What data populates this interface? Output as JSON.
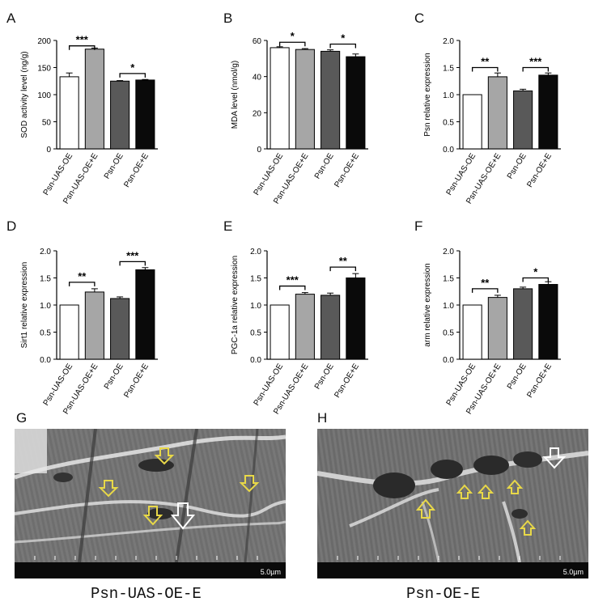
{
  "colors": {
    "open_bar": "#ffffff",
    "light_bar": "#a6a6a6",
    "dark_bar": "#595959",
    "black_bar": "#0a0a0a",
    "arrow_yellow": "#e8d848",
    "arrow_white": "#ffffff"
  },
  "chart_data": [
    {
      "panel": "A",
      "type": "bar",
      "ylabel": "SOD activity level (ng/g)",
      "categories": [
        "Psn-UAS-OE",
        "Psn-UAS-OE+E",
        "Psn-OE",
        "Psn-OE+E"
      ],
      "values": [
        133,
        184,
        125,
        127
      ],
      "errors": [
        7,
        2,
        1,
        1
      ],
      "ylim": [
        0,
        200
      ],
      "yticks": [
        "0",
        "50",
        "100",
        "150",
        "200"
      ],
      "tick_values": [
        0,
        50,
        100,
        150,
        200
      ],
      "significance": [
        {
          "from": 0,
          "to": 1,
          "label": "***",
          "level": 190
        },
        {
          "from": 2,
          "to": 3,
          "label": "*",
          "level": 139
        }
      ]
    },
    {
      "panel": "B",
      "type": "bar",
      "ylabel": "MDA  level (nmol/g)",
      "categories": [
        "Psn-UAS-OE",
        "Psn-UAS-OE+E",
        "Psn-OE",
        "Psn-OE+E"
      ],
      "values": [
        56,
        55,
        54,
        51
      ],
      "errors": [
        0.5,
        0.5,
        0.8,
        1.5
      ],
      "ylim": [
        0,
        60
      ],
      "yticks": [
        "0",
        "20",
        "40",
        "60"
      ],
      "tick_values": [
        0,
        20,
        40,
        60
      ],
      "significance": [
        {
          "from": 0,
          "to": 1,
          "label": "*",
          "level": 59
        },
        {
          "from": 2,
          "to": 3,
          "label": "*",
          "level": 58
        }
      ]
    },
    {
      "panel": "C",
      "type": "bar",
      "ylabel": "Psn relative expression",
      "categories": [
        "Psn-UAS-OE",
        "Psn-UAS-OE+E",
        "Psn-OE",
        "Psn-OE+E"
      ],
      "values": [
        1.0,
        1.33,
        1.07,
        1.36
      ],
      "errors": [
        0.0,
        0.07,
        0.03,
        0.04
      ],
      "ylim": [
        0,
        2.0
      ],
      "yticks": [
        "0.0",
        "0.5",
        "1.0",
        "1.5",
        "2.0"
      ],
      "tick_values": [
        0,
        0.5,
        1.0,
        1.5,
        2.0
      ],
      "significance": [
        {
          "from": 0,
          "to": 1,
          "label": "**",
          "level": 1.5
        },
        {
          "from": 2,
          "to": 3,
          "label": "***",
          "level": 1.5
        }
      ]
    },
    {
      "panel": "D",
      "type": "bar",
      "ylabel": "Sirt1  relative expression",
      "categories": [
        "Psn-UAS-OE",
        "Psn-UAS-OE+E",
        "Psn-OE",
        "Psn-OE+E"
      ],
      "values": [
        1.0,
        1.24,
        1.12,
        1.65
      ],
      "errors": [
        0.0,
        0.06,
        0.03,
        0.04
      ],
      "ylim": [
        0,
        2.0
      ],
      "yticks": [
        "0.0",
        "0.5",
        "1.0",
        "1.5",
        "2.0"
      ],
      "tick_values": [
        0,
        0.5,
        1.0,
        1.5,
        2.0
      ],
      "significance": [
        {
          "from": 0,
          "to": 1,
          "label": "**",
          "level": 1.42
        },
        {
          "from": 2,
          "to": 3,
          "label": "***",
          "level": 1.8
        }
      ]
    },
    {
      "panel": "E",
      "type": "bar",
      "ylabel": "PGC-1a relative expression",
      "categories": [
        "Psn-UAS-OE",
        "Psn-UAS-OE+E",
        "Psn-OE",
        "Psn-OE+E"
      ],
      "values": [
        1.0,
        1.2,
        1.18,
        1.5
      ],
      "errors": [
        0.0,
        0.03,
        0.04,
        0.08
      ],
      "ylim": [
        0,
        2.0
      ],
      "yticks": [
        "0.0",
        "0.5",
        "1.0",
        "1.5",
        "2.0"
      ],
      "tick_values": [
        0,
        0.5,
        1.0,
        1.5,
        2.0
      ],
      "significance": [
        {
          "from": 0,
          "to": 1,
          "label": "***",
          "level": 1.35
        },
        {
          "from": 2,
          "to": 3,
          "label": "**",
          "level": 1.7
        }
      ]
    },
    {
      "panel": "F",
      "type": "bar",
      "ylabel": "arm relative expression",
      "categories": [
        "Psn-UAS-OE",
        "Psn-UAS-OE+E",
        "Psn-OE",
        "Psn-OE+E"
      ],
      "values": [
        1.0,
        1.14,
        1.3,
        1.38
      ],
      "errors": [
        0.0,
        0.04,
        0.03,
        0.05
      ],
      "ylim": [
        0,
        2.0
      ],
      "yticks": [
        "0.0",
        "0.5",
        "1.0",
        "1.5",
        "2.0"
      ],
      "tick_values": [
        0,
        0.5,
        1.0,
        1.5,
        2.0
      ],
      "significance": [
        {
          "from": 0,
          "to": 1,
          "label": "**",
          "level": 1.3
        },
        {
          "from": 2,
          "to": 3,
          "label": "*",
          "level": 1.5
        }
      ]
    }
  ],
  "micrographs": [
    {
      "panel": "G",
      "caption": "Psn-UAS-OE-E",
      "scale_label": "5.0µm"
    },
    {
      "panel": "H",
      "caption": "Psn-OE-E",
      "scale_label": "5.0µm"
    }
  ]
}
